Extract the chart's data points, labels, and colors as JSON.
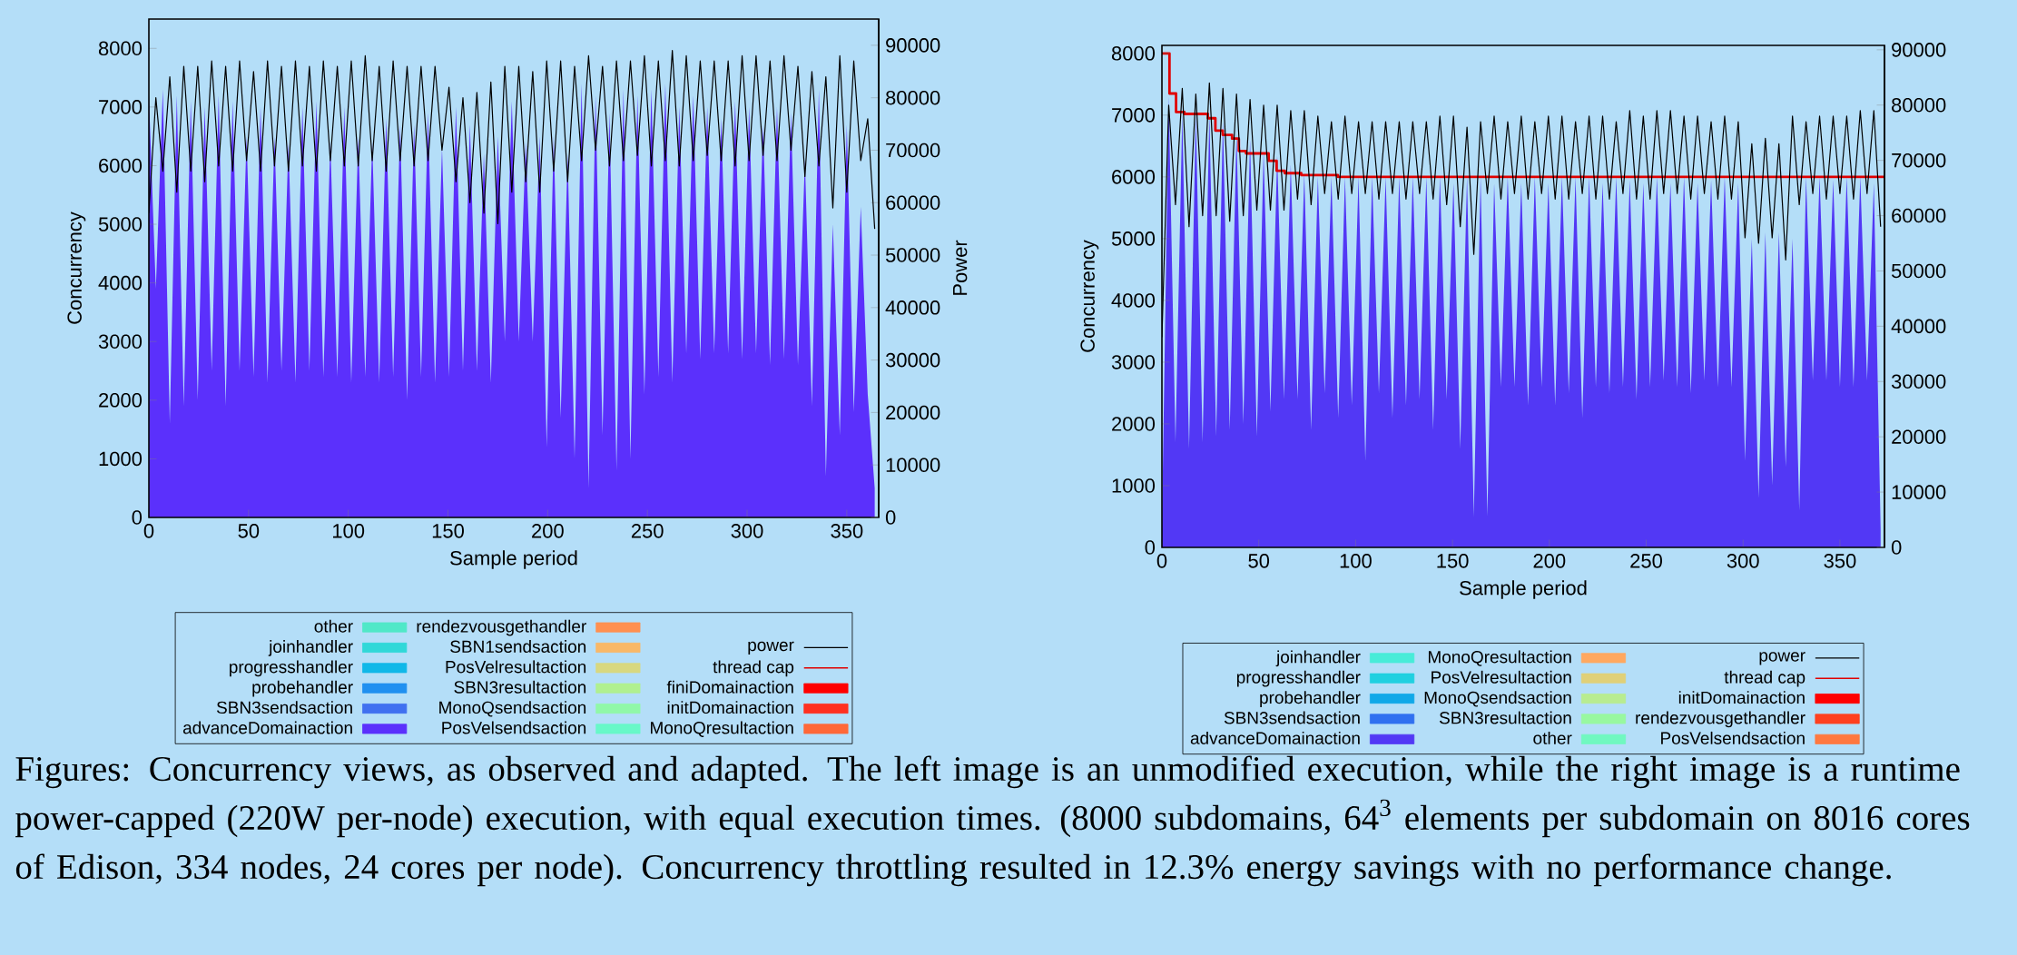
{
  "chart_data": [
    {
      "type": "area",
      "xlabel": "Sample period",
      "ylabel": "Concurrency",
      "y2label": "Power",
      "xlim": [
        0,
        366
      ],
      "xticks": [
        0,
        50,
        100,
        150,
        200,
        250,
        300,
        350
      ],
      "ylim": [
        0,
        8500
      ],
      "yticks": [
        0,
        1000,
        2000,
        3000,
        4000,
        5000,
        6000,
        7000,
        8000
      ],
      "y2lim": [
        0,
        95000
      ],
      "y2ticks": [
        0,
        10000,
        20000,
        30000,
        40000,
        50000,
        60000,
        70000,
        80000,
        90000
      ],
      "legend": "bottom",
      "annotations": [
        "Figures: Concurrency views, as observed and adapted. The left image is an unmodified execution, while the right image is a runtime power-capped (220W per-node) execution, with equal execution times. (8000 subdomains, 64$^{3}$ elements per subdomain on 8016 cores of Edison, 334 nodes, 24 cores per node). Concurrency throttling resulted in 12.3% energy savings with no performance change."
      ],
      "series": [
        {
          "name": "other",
          "color": "#50e8c8"
        },
        {
          "name": "joinhandler",
          "color": "#30d8d8"
        },
        {
          "name": "progresshandler",
          "color": "#10b8e8"
        },
        {
          "name": "probehandler",
          "color": "#2090f0"
        },
        {
          "name": "SBN3sendsaction",
          "color": "#4070f0"
        },
        {
          "name": "advanceDomainaction",
          "color": "#5b30fc",
          "x": [
            0,
            3.5,
            7,
            10.5,
            14,
            17.5,
            21,
            24.5,
            28,
            31.5,
            35,
            38.5,
            42,
            45.5,
            49,
            52.5,
            56,
            59.5,
            63,
            66.5,
            70,
            73.5,
            77,
            80.5,
            84,
            87.5,
            91,
            94.5,
            98,
            101.5,
            105,
            108.5,
            112,
            115.5,
            119,
            122.5,
            126,
            129.5,
            133,
            136.5,
            140,
            143.5,
            147,
            150.5,
            154,
            157.5,
            161,
            164.5,
            168,
            171.5,
            175,
            178.5,
            182,
            185.5,
            189,
            192.5,
            196,
            199.5,
            203,
            206.5,
            210,
            213.5,
            217,
            220.5,
            224,
            227.5,
            231,
            234.5,
            238,
            241.5,
            245,
            248.5,
            252,
            255.5,
            259,
            262.5,
            266,
            269.5,
            273,
            276.5,
            280,
            283.5,
            287,
            290.5,
            294,
            297.5,
            301,
            304.5,
            308,
            311.5,
            315,
            318.5,
            322,
            325.5,
            329,
            332.5,
            336,
            339.5,
            343,
            346.5,
            350,
            353.5,
            357,
            360.5,
            364
          ],
          "values": [
            7200,
            3900,
            7300,
            1600,
            7200,
            1900,
            7100,
            2000,
            7000,
            2500,
            7200,
            1900,
            7100,
            2500,
            6500,
            2400,
            7000,
            2300,
            6500,
            2500,
            6400,
            2300,
            7000,
            2500,
            7100,
            2400,
            6400,
            2400,
            7000,
            2300,
            6500,
            2400,
            6400,
            2300,
            6800,
            2400,
            6700,
            2000,
            6700,
            2400,
            6900,
            2300,
            6300,
            2400,
            7000,
            2500,
            6700,
            2500,
            6200,
            2300,
            6500,
            3000,
            7100,
            3000,
            6400,
            3000,
            6500,
            1200,
            6500,
            1700,
            6200,
            1000,
            7400,
            500,
            7200,
            1400,
            6900,
            800,
            7300,
            1000,
            7200,
            2100,
            7300,
            2400,
            7400,
            2300,
            7000,
            2800,
            7200,
            2700,
            7000,
            2800,
            6800,
            2800,
            7100,
            2700,
            7000,
            2800,
            6700,
            2600,
            7000,
            2700,
            6900,
            2600,
            6100,
            1900,
            7300,
            700,
            5000,
            1400,
            6700,
            1800,
            5300,
            2100,
            500
          ]
        },
        {
          "name": "rendezvousgethandler",
          "color": "#ff9050"
        },
        {
          "name": "SBN1sendsaction",
          "color": "#f8b868"
        },
        {
          "name": "PosVelresultaction",
          "color": "#d8d880"
        },
        {
          "name": "SBN3resultaction",
          "color": "#b0f090"
        },
        {
          "name": "MonoQsendsaction",
          "color": "#90f8a8"
        },
        {
          "name": "PosVelsendsaction",
          "color": "#68f8c8"
        },
        {
          "name": "power",
          "type": "line",
          "axis": "y2",
          "color": "#000000",
          "x": [
            0,
            3.5,
            7,
            10.5,
            14,
            17.5,
            21,
            24.5,
            28,
            31.5,
            35,
            38.5,
            42,
            45.5,
            49,
            52.5,
            56,
            59.5,
            63,
            66.5,
            70,
            73.5,
            77,
            80.5,
            84,
            87.5,
            91,
            94.5,
            98,
            101.5,
            105,
            108.5,
            112,
            115.5,
            119,
            122.5,
            126,
            129.5,
            133,
            136.5,
            140,
            143.5,
            147,
            150.5,
            154,
            157.5,
            161,
            164.5,
            168,
            171.5,
            175,
            178.5,
            182,
            185.5,
            189,
            192.5,
            196,
            199.5,
            203,
            206.5,
            210,
            213.5,
            217,
            220.5,
            224,
            227.5,
            231,
            234.5,
            238,
            241.5,
            245,
            248.5,
            252,
            255.5,
            259,
            262.5,
            266,
            269.5,
            273,
            276.5,
            280,
            283.5,
            287,
            290.5,
            294,
            297.5,
            301,
            304.5,
            308,
            311.5,
            315,
            318.5,
            322,
            325.5,
            329,
            332.5,
            336,
            339.5,
            343,
            346.5,
            350,
            353.5,
            357,
            360.5,
            364
          ],
          "values": [
            58000,
            80000,
            66000,
            84000,
            62000,
            86000,
            66000,
            86000,
            64000,
            87000,
            67000,
            86000,
            66000,
            87000,
            68000,
            85000,
            66000,
            87000,
            67000,
            86000,
            66000,
            87000,
            67000,
            86000,
            66000,
            87000,
            68000,
            86000,
            67000,
            87000,
            67000,
            88000,
            68000,
            86000,
            66000,
            87000,
            68000,
            86000,
            67000,
            86000,
            68000,
            86000,
            70000,
            82000,
            64000,
            80000,
            60000,
            81000,
            58000,
            83000,
            56000,
            86000,
            62000,
            86000,
            64000,
            85000,
            62000,
            87000,
            66000,
            87000,
            64000,
            86000,
            68000,
            88000,
            70000,
            86000,
            67000,
            87000,
            68000,
            87000,
            69000,
            88000,
            67000,
            87000,
            68000,
            89000,
            67000,
            88000,
            68000,
            87000,
            69000,
            87000,
            68000,
            87000,
            67000,
            88000,
            68000,
            88000,
            69000,
            87000,
            68000,
            88000,
            70000,
            86000,
            65000,
            85000,
            67000,
            84000,
            59000,
            88000,
            62000,
            87000,
            68000,
            76000,
            55000
          ]
        },
        {
          "name": "thread cap",
          "type": "step",
          "color": "#e00000"
        },
        {
          "name": "finiDomainaction",
          "color": "#ff0000"
        },
        {
          "name": "initDomainaction",
          "color": "#ff3020"
        },
        {
          "name": "MonoQresultaction",
          "color": "#ff6838"
        }
      ]
    },
    {
      "type": "area",
      "xlabel": "Sample period",
      "ylabel": "Concurrency",
      "xlim": [
        0,
        373
      ],
      "xticks": [
        0,
        50,
        100,
        150,
        200,
        250,
        300,
        350
      ],
      "ylim": [
        0,
        8130
      ],
      "yticks": [
        0,
        1000,
        2000,
        3000,
        4000,
        5000,
        6000,
        7000,
        8000
      ],
      "y2lim": [
        0,
        90800
      ],
      "y2ticks": [
        0,
        10000,
        20000,
        30000,
        40000,
        50000,
        60000,
        70000,
        80000,
        90000
      ],
      "legend": "bottom",
      "series": [
        {
          "name": "joinhandler",
          "color": "#48ecd8"
        },
        {
          "name": "progresshandler",
          "color": "#20d0e0"
        },
        {
          "name": "probehandler",
          "color": "#10a8e8"
        },
        {
          "name": "SBN3sendsaction",
          "color": "#3070f0"
        },
        {
          "name": "advanceDomainaction",
          "color": "#5238f5",
          "x": [
            0,
            3.5,
            7,
            10.5,
            14,
            17.5,
            21,
            24.5,
            28,
            31.5,
            35,
            38.5,
            42,
            45.5,
            49,
            52.5,
            56,
            59.5,
            63,
            66.5,
            70,
            73.5,
            77,
            80.5,
            84,
            87.5,
            91,
            94.5,
            98,
            101.5,
            105,
            108.5,
            112,
            115.5,
            119,
            122.5,
            126,
            129.5,
            133,
            136.5,
            140,
            143.5,
            147,
            150.5,
            154,
            157.5,
            161,
            164.5,
            168,
            171.5,
            175,
            178.5,
            182,
            185.5,
            189,
            192.5,
            196,
            199.5,
            203,
            206.5,
            210,
            213.5,
            217,
            220.5,
            224,
            227.5,
            231,
            234.5,
            238,
            241.5,
            245,
            248.5,
            252,
            255.5,
            259,
            262.5,
            266,
            269.5,
            273,
            276.5,
            280,
            283.5,
            287,
            290.5,
            294,
            297.5,
            301,
            304.5,
            308,
            311.5,
            315,
            318.5,
            322,
            325.5,
            329,
            332.5,
            336,
            339.5,
            343,
            346.5,
            350,
            353.5,
            357,
            360.5,
            364,
            367.5,
            371
          ],
          "values": [
            300,
            7300,
            1700,
            7000,
            1600,
            7000,
            1700,
            7000,
            1800,
            6900,
            1900,
            6700,
            2000,
            6600,
            1800,
            6400,
            2200,
            6350,
            2400,
            6200,
            2400,
            6050,
            1900,
            6000,
            2500,
            6000,
            2100,
            6000,
            2300,
            6000,
            1400,
            6000,
            2500,
            6000,
            2100,
            6000,
            2300,
            6000,
            2400,
            6000,
            1900,
            6000,
            2400,
            5900,
            1600,
            6000,
            500,
            6000,
            500,
            5900,
            2600,
            6000,
            2600,
            5900,
            2300,
            6000,
            2600,
            5900,
            2300,
            6000,
            2500,
            6000,
            2100,
            6000,
            2600,
            5900,
            2500,
            6000,
            2600,
            5950,
            2400,
            5900,
            2600,
            6000,
            2700,
            5900,
            2600,
            6000,
            2500,
            5900,
            2700,
            5950,
            2600,
            6000,
            2600,
            5900,
            1400,
            5000,
            800,
            5100,
            1000,
            5100,
            1300,
            5000,
            600,
            6000,
            2700,
            6000,
            2700,
            5950,
            2600,
            6000,
            2600,
            6000,
            2700,
            5900,
            300
          ]
        },
        {
          "name": "MonoQresultaction",
          "color": "#ffa860"
        },
        {
          "name": "PosVelresultaction",
          "color": "#e0d078"
        },
        {
          "name": "MonoQsendsaction",
          "color": "#b8ec90"
        },
        {
          "name": "SBN3resultaction",
          "color": "#98f8a0"
        },
        {
          "name": "other",
          "color": "#70f8c0"
        },
        {
          "name": "power",
          "type": "line",
          "axis": "y2",
          "color": "#000000",
          "x": [
            0,
            3.5,
            7,
            10.5,
            14,
            17.5,
            21,
            24.5,
            28,
            31.5,
            35,
            38.5,
            42,
            45.5,
            49,
            52.5,
            56,
            59.5,
            63,
            66.5,
            70,
            73.5,
            77,
            80.5,
            84,
            87.5,
            91,
            94.5,
            98,
            101.5,
            105,
            108.5,
            112,
            115.5,
            119,
            122.5,
            126,
            129.5,
            133,
            136.5,
            140,
            143.5,
            147,
            150.5,
            154,
            157.5,
            161,
            164.5,
            168,
            171.5,
            175,
            178.5,
            182,
            185.5,
            189,
            192.5,
            196,
            199.5,
            203,
            206.5,
            210,
            213.5,
            217,
            220.5,
            224,
            227.5,
            231,
            234.5,
            238,
            241.5,
            245,
            248.5,
            252,
            255.5,
            259,
            262.5,
            266,
            269.5,
            273,
            276.5,
            280,
            283.5,
            287,
            290.5,
            294,
            297.5,
            301,
            304.5,
            308,
            311.5,
            315,
            318.5,
            322,
            325.5,
            329,
            332.5,
            336,
            339.5,
            343,
            346.5,
            350,
            353.5,
            357,
            360.5,
            364,
            367.5,
            371
          ],
          "values": [
            38000,
            80000,
            62000,
            83000,
            58000,
            82000,
            60000,
            84000,
            60000,
            83000,
            59000,
            82000,
            60000,
            81000,
            61000,
            80000,
            61000,
            80000,
            61000,
            79000,
            63000,
            79000,
            62000,
            78000,
            64000,
            77000,
            63000,
            78000,
            64000,
            77000,
            64000,
            77000,
            63000,
            77000,
            64000,
            77000,
            63000,
            77000,
            64000,
            77000,
            63000,
            78000,
            62000,
            78000,
            58000,
            76000,
            53000,
            77000,
            64000,
            78000,
            63000,
            77000,
            64000,
            78000,
            63000,
            77000,
            64000,
            78000,
            63000,
            78000,
            63000,
            77000,
            64000,
            78000,
            63000,
            78000,
            63000,
            77000,
            64000,
            79000,
            63000,
            78000,
            63000,
            79000,
            64000,
            79000,
            64000,
            78000,
            63000,
            78000,
            64000,
            77000,
            63000,
            78000,
            63000,
            77000,
            56000,
            73000,
            55000,
            74000,
            56000,
            73000,
            52000,
            78000,
            62000,
            77000,
            64000,
            78000,
            63000,
            78000,
            64000,
            78000,
            63000,
            79000,
            64000,
            79000,
            58000
          ]
        },
        {
          "name": "thread cap",
          "type": "step",
          "color": "#e00000",
          "x": [
            0,
            3.9,
            7.3,
            11.6,
            23.7,
            27.6,
            31.4,
            36.2,
            39.7,
            43.4,
            55.1,
            59.2,
            63.4,
            71.9,
            90.8,
            373
          ],
          "values": [
            8000,
            7350,
            7050,
            7020,
            6950,
            6750,
            6680,
            6620,
            6420,
            6380,
            6260,
            6100,
            6060,
            6030,
            6000,
            6000
          ]
        },
        {
          "name": "initDomainaction",
          "color": "#ff0000"
        },
        {
          "name": "rendezvousgethandler",
          "color": "#ff4020"
        },
        {
          "name": "PosVelsendsaction",
          "color": "#ff7840"
        }
      ]
    }
  ]
}
